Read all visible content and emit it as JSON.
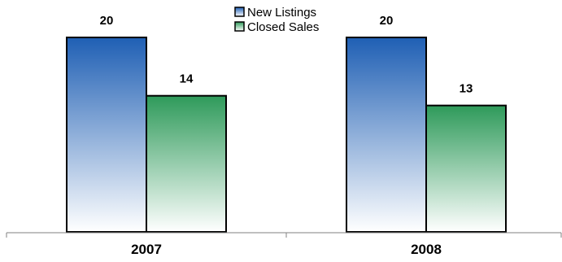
{
  "chart_data": {
    "type": "bar",
    "categories": [
      "2007",
      "2008"
    ],
    "series": [
      {
        "name": "New Listings",
        "values": [
          20,
          20
        ],
        "color": "#1f5fb4"
      },
      {
        "name": "Closed Sales",
        "values": [
          14,
          13
        ],
        "color": "#2e9a5a"
      }
    ],
    "ylim": [
      0,
      24
    ],
    "grid": false,
    "legend": "top-center",
    "title": "",
    "xlabel": "",
    "ylabel": ""
  }
}
